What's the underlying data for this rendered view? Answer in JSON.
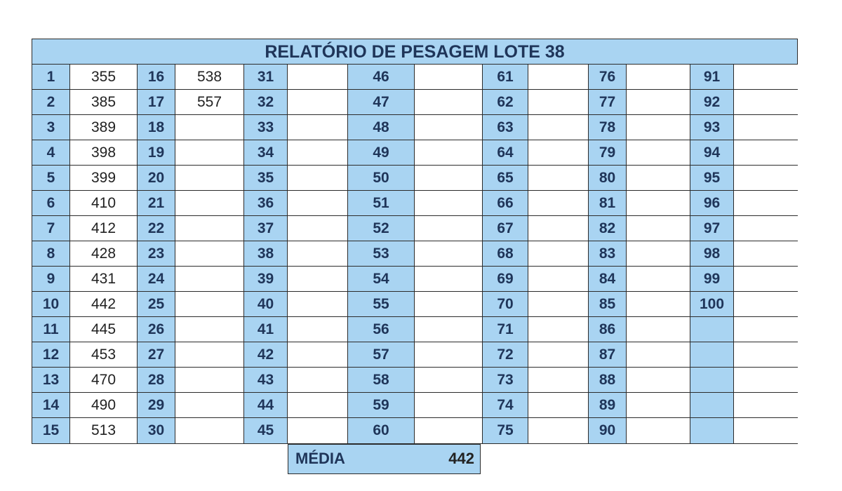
{
  "report": {
    "title": "RELATÓRIO DE PESAGEM LOTE 38",
    "rows": [
      [
        {
          "n": "1",
          "v": "355"
        },
        {
          "n": "16",
          "v": "538"
        },
        {
          "n": "31",
          "v": ""
        },
        {
          "n": "46",
          "v": ""
        },
        {
          "n": "61",
          "v": ""
        },
        {
          "n": "76",
          "v": ""
        },
        {
          "n": "91",
          "v": ""
        }
      ],
      [
        {
          "n": "2",
          "v": "385"
        },
        {
          "n": "17",
          "v": "557"
        },
        {
          "n": "32",
          "v": ""
        },
        {
          "n": "47",
          "v": ""
        },
        {
          "n": "62",
          "v": ""
        },
        {
          "n": "77",
          "v": ""
        },
        {
          "n": "92",
          "v": ""
        }
      ],
      [
        {
          "n": "3",
          "v": "389"
        },
        {
          "n": "18",
          "v": ""
        },
        {
          "n": "33",
          "v": ""
        },
        {
          "n": "48",
          "v": ""
        },
        {
          "n": "63",
          "v": ""
        },
        {
          "n": "78",
          "v": ""
        },
        {
          "n": "93",
          "v": ""
        }
      ],
      [
        {
          "n": "4",
          "v": "398"
        },
        {
          "n": "19",
          "v": ""
        },
        {
          "n": "34",
          "v": ""
        },
        {
          "n": "49",
          "v": ""
        },
        {
          "n": "64",
          "v": ""
        },
        {
          "n": "79",
          "v": ""
        },
        {
          "n": "94",
          "v": ""
        }
      ],
      [
        {
          "n": "5",
          "v": "399"
        },
        {
          "n": "20",
          "v": ""
        },
        {
          "n": "35",
          "v": ""
        },
        {
          "n": "50",
          "v": ""
        },
        {
          "n": "65",
          "v": ""
        },
        {
          "n": "80",
          "v": ""
        },
        {
          "n": "95",
          "v": ""
        }
      ],
      [
        {
          "n": "6",
          "v": "410"
        },
        {
          "n": "21",
          "v": ""
        },
        {
          "n": "36",
          "v": ""
        },
        {
          "n": "51",
          "v": ""
        },
        {
          "n": "66",
          "v": ""
        },
        {
          "n": "81",
          "v": ""
        },
        {
          "n": "96",
          "v": ""
        }
      ],
      [
        {
          "n": "7",
          "v": "412"
        },
        {
          "n": "22",
          "v": ""
        },
        {
          "n": "37",
          "v": ""
        },
        {
          "n": "52",
          "v": ""
        },
        {
          "n": "67",
          "v": ""
        },
        {
          "n": "82",
          "v": ""
        },
        {
          "n": "97",
          "v": ""
        }
      ],
      [
        {
          "n": "8",
          "v": "428"
        },
        {
          "n": "23",
          "v": ""
        },
        {
          "n": "38",
          "v": ""
        },
        {
          "n": "53",
          "v": ""
        },
        {
          "n": "68",
          "v": ""
        },
        {
          "n": "83",
          "v": ""
        },
        {
          "n": "98",
          "v": ""
        }
      ],
      [
        {
          "n": "9",
          "v": "431"
        },
        {
          "n": "24",
          "v": ""
        },
        {
          "n": "39",
          "v": ""
        },
        {
          "n": "54",
          "v": ""
        },
        {
          "n": "69",
          "v": ""
        },
        {
          "n": "84",
          "v": ""
        },
        {
          "n": "99",
          "v": ""
        }
      ],
      [
        {
          "n": "10",
          "v": "442"
        },
        {
          "n": "25",
          "v": ""
        },
        {
          "n": "40",
          "v": ""
        },
        {
          "n": "55",
          "v": ""
        },
        {
          "n": "70",
          "v": ""
        },
        {
          "n": "85",
          "v": ""
        },
        {
          "n": "100",
          "v": ""
        }
      ],
      [
        {
          "n": "11",
          "v": "445"
        },
        {
          "n": "26",
          "v": ""
        },
        {
          "n": "41",
          "v": ""
        },
        {
          "n": "56",
          "v": ""
        },
        {
          "n": "71",
          "v": ""
        },
        {
          "n": "86",
          "v": ""
        },
        {
          "n": "",
          "v": ""
        }
      ],
      [
        {
          "n": "12",
          "v": "453"
        },
        {
          "n": "27",
          "v": ""
        },
        {
          "n": "42",
          "v": ""
        },
        {
          "n": "57",
          "v": ""
        },
        {
          "n": "72",
          "v": ""
        },
        {
          "n": "87",
          "v": ""
        },
        {
          "n": "",
          "v": ""
        }
      ],
      [
        {
          "n": "13",
          "v": "470"
        },
        {
          "n": "28",
          "v": ""
        },
        {
          "n": "43",
          "v": ""
        },
        {
          "n": "58",
          "v": ""
        },
        {
          "n": "73",
          "v": ""
        },
        {
          "n": "88",
          "v": ""
        },
        {
          "n": "",
          "v": ""
        }
      ],
      [
        {
          "n": "14",
          "v": "490"
        },
        {
          "n": "29",
          "v": ""
        },
        {
          "n": "44",
          "v": ""
        },
        {
          "n": "59",
          "v": ""
        },
        {
          "n": "74",
          "v": ""
        },
        {
          "n": "89",
          "v": ""
        },
        {
          "n": "",
          "v": ""
        }
      ],
      [
        {
          "n": "15",
          "v": "513"
        },
        {
          "n": "30",
          "v": ""
        },
        {
          "n": "45",
          "v": ""
        },
        {
          "n": "60",
          "v": ""
        },
        {
          "n": "75",
          "v": ""
        },
        {
          "n": "90",
          "v": ""
        },
        {
          "n": "",
          "v": ""
        }
      ]
    ],
    "media": {
      "label": "MÉDIA",
      "value": "442"
    },
    "colors": {
      "header_fill": "#a9d4f2",
      "header_text": "#1f3559",
      "border": "#2b2b2b"
    }
  }
}
